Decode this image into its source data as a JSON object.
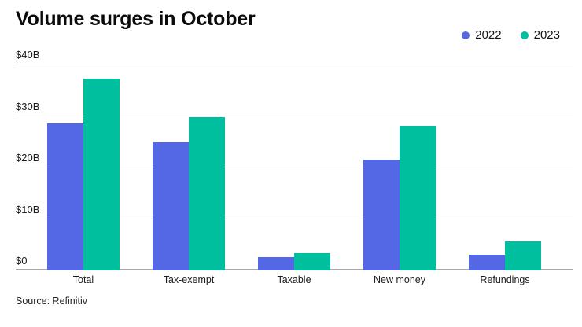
{
  "chart_data": {
    "type": "bar",
    "title": "Volume surges in October",
    "categories": [
      "Total",
      "Tax-exempt",
      "Taxable",
      "New money",
      "Refundings"
    ],
    "series": [
      {
        "name": "2022",
        "color": "#5468e6",
        "values": [
          28.6,
          24.9,
          2.6,
          21.6,
          3.1
        ]
      },
      {
        "name": "2023",
        "color": "#00bf9f",
        "values": [
          37.2,
          29.8,
          3.4,
          28.1,
          5.6
        ]
      }
    ],
    "ylim": [
      0,
      40
    ],
    "yticks": [
      {
        "value": 0,
        "label": "$0"
      },
      {
        "value": 10,
        "label": "$10B"
      },
      {
        "value": 20,
        "label": "$20B"
      },
      {
        "value": 30,
        "label": "$30B"
      },
      {
        "value": 40,
        "label": "$40B"
      }
    ],
    "grid": true,
    "legend_position": "top-right",
    "xlabel": "",
    "ylabel": ""
  },
  "source_note": "Source: Refinitiv",
  "colors": {
    "series_2022": "#5468e6",
    "series_2023": "#00bf9f",
    "gridline": "#c6c6c6",
    "baseline": "#a8a8a8",
    "background": "#ffffff",
    "text": "#111111"
  }
}
